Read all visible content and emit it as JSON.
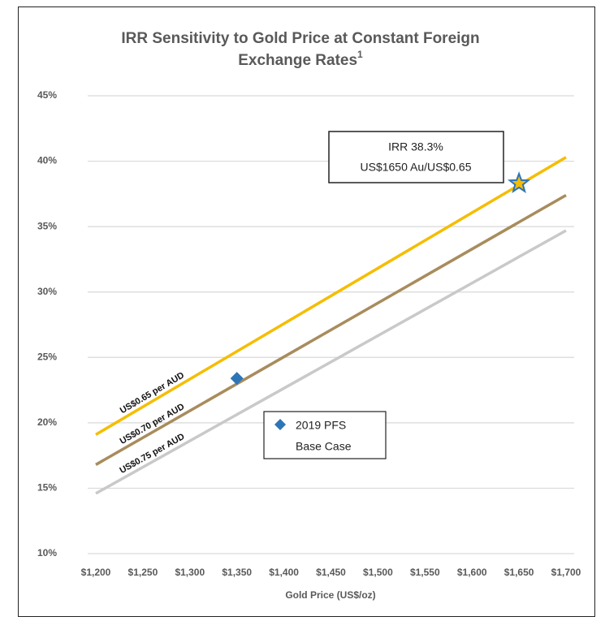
{
  "chart_data": {
    "type": "line",
    "title": "IRR Sensitivity to Gold Price at Constant Foreign Exchange Rates",
    "title_footnote": "1",
    "x_label": "Gold Price (US$/oz)",
    "x": [
      1200,
      1700
    ],
    "series": [
      {
        "name": "US$0.65 per AUD",
        "color": "#f5bd00",
        "values": [
          19.1,
          40.3
        ]
      },
      {
        "name": "US$0.70 per AUD",
        "color": "#a88c5c",
        "values": [
          16.8,
          37.4
        ]
      },
      {
        "name": "US$0.75 per AUD",
        "color": "#c9c9c9",
        "values": [
          14.6,
          34.7
        ]
      }
    ],
    "markers": [
      {
        "x": 1650,
        "y": 38.3,
        "shape": "star",
        "color": "#f5bd00",
        "edge_color": "#2e75b6"
      },
      {
        "x": 1350,
        "y": 23.4,
        "shape": "diamond",
        "color": "#2e75b6"
      }
    ],
    "annotations": [
      {
        "lines": [
          "IRR 38.3%",
          "US$1650 Au/US$0.65"
        ]
      },
      {
        "lines": [
          "2019 PFS",
          "Base Case"
        ]
      }
    ],
    "xlim": [
      1200,
      1700
    ],
    "ylim": [
      10,
      45
    ],
    "xticks": [
      {
        "value": 1200,
        "label": "$1,200"
      },
      {
        "value": 1250,
        "label": "$1,250"
      },
      {
        "value": 1300,
        "label": "$1,300"
      },
      {
        "value": 1350,
        "label": "$1,350"
      },
      {
        "value": 1400,
        "label": "$1,400"
      },
      {
        "value": 1450,
        "label": "$1,450"
      },
      {
        "value": 1500,
        "label": "$1,500"
      },
      {
        "value": 1550,
        "label": "$1,550"
      },
      {
        "value": 1600,
        "label": "$1,600"
      },
      {
        "value": 1650,
        "label": "$1,650"
      },
      {
        "value": 1700,
        "label": "$1,700"
      }
    ],
    "yticks": [
      {
        "value": 10,
        "label": "10%"
      },
      {
        "value": 15,
        "label": "15%"
      },
      {
        "value": 20,
        "label": "20%"
      },
      {
        "value": 25,
        "label": "25%"
      },
      {
        "value": 30,
        "label": "30%"
      },
      {
        "value": 35,
        "label": "35%"
      },
      {
        "value": 40,
        "label": "40%"
      },
      {
        "value": 45,
        "label": "45%"
      }
    ],
    "grid": true
  }
}
